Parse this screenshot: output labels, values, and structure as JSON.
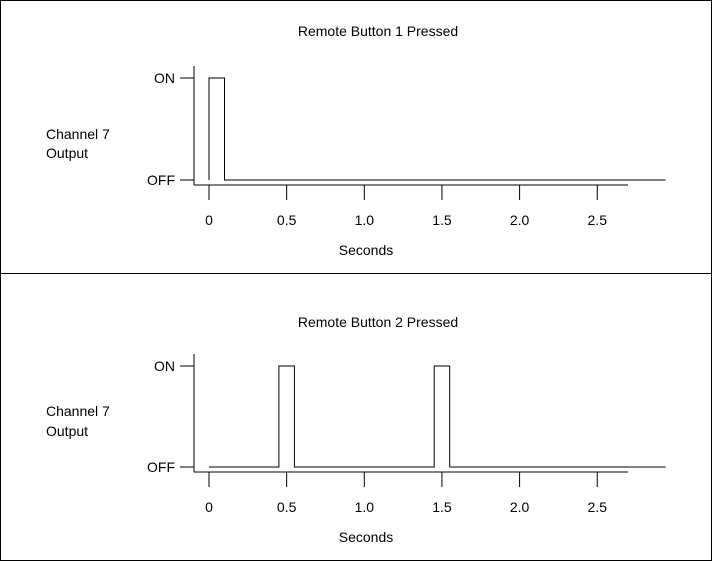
{
  "chart_data": [
    {
      "type": "line",
      "title": "Remote Button 1 Pressed",
      "ylabel": [
        "Channel 7",
        "Output"
      ],
      "xlabel": "Seconds",
      "xticks": [
        0,
        0.5,
        1.0,
        1.5,
        2.0,
        2.5
      ],
      "xtick_labels": [
        "0",
        "0.5",
        "1.0",
        "1.5",
        "2.0",
        "2.5"
      ],
      "yticks": [
        0,
        1
      ],
      "ytick_labels": [
        "OFF",
        "ON"
      ],
      "xlim": [
        0,
        2.7
      ],
      "ylim": [
        0,
        1
      ],
      "grid": false,
      "series": [
        {
          "x": [
            0,
            0,
            0.1,
            0.1,
            2.94
          ],
          "y": [
            0,
            1,
            1,
            0,
            0
          ]
        }
      ]
    },
    {
      "type": "line",
      "title": "Remote Button 2 Pressed",
      "ylabel": [
        "Channel 7",
        "Output"
      ],
      "xlabel": "Seconds",
      "xticks": [
        0,
        0.5,
        1.0,
        1.5,
        2.0,
        2.5
      ],
      "xtick_labels": [
        "0",
        "0.5",
        "1.0",
        "1.5",
        "2.0",
        "2.5"
      ],
      "yticks": [
        0,
        1
      ],
      "ytick_labels": [
        "OFF",
        "ON"
      ],
      "xlim": [
        0,
        2.7
      ],
      "ylim": [
        0,
        1
      ],
      "grid": false,
      "series": [
        {
          "x": [
            0,
            0.45,
            0.45,
            0.55,
            0.55,
            1.45,
            1.45,
            1.55,
            1.55,
            2.94
          ],
          "y": [
            0,
            0,
            1,
            1,
            0,
            0,
            1,
            1,
            0,
            0
          ]
        }
      ]
    }
  ]
}
